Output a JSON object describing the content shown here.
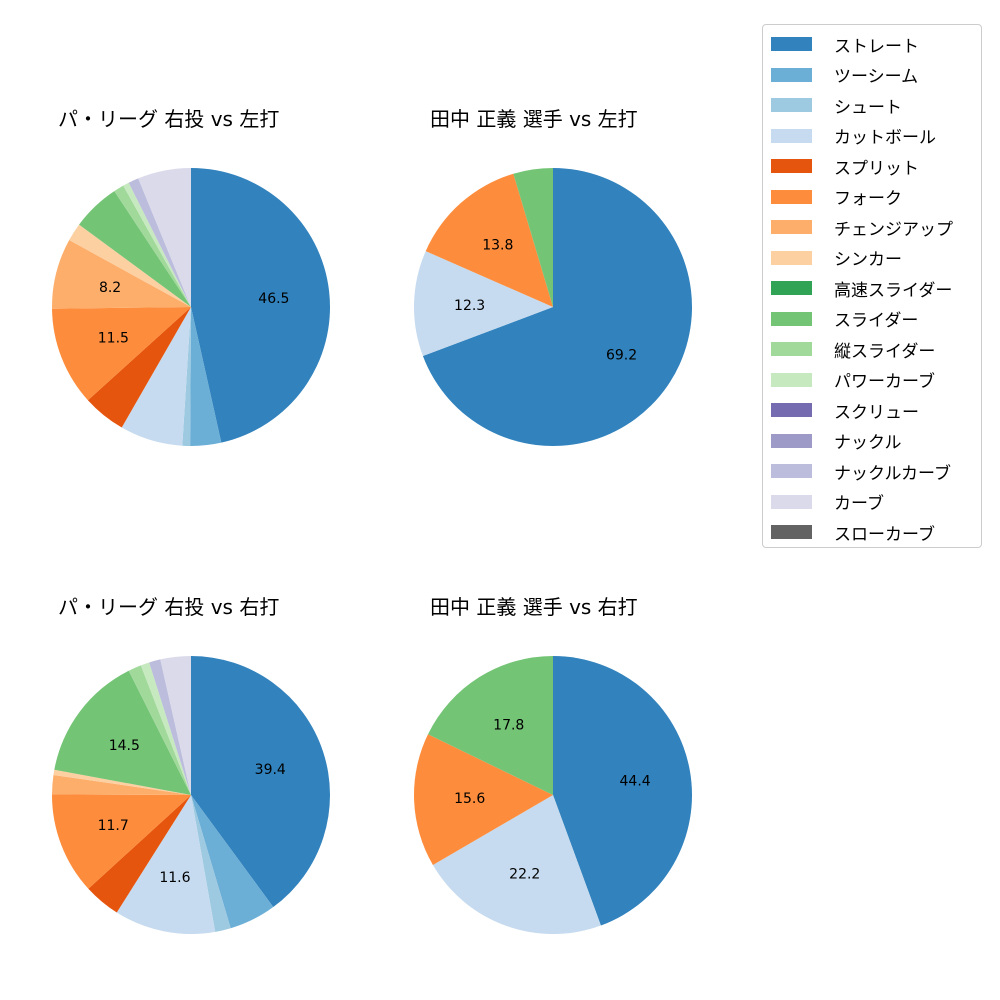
{
  "legend": {
    "items": [
      {
        "label": "ストレート",
        "color": "#3182bd"
      },
      {
        "label": "ツーシーム",
        "color": "#6baed6"
      },
      {
        "label": "シュート",
        "color": "#9ecae1"
      },
      {
        "label": "カットボール",
        "color": "#c6dbef"
      },
      {
        "label": "スプリット",
        "color": "#e6550d"
      },
      {
        "label": "フォーク",
        "color": "#fd8d3c"
      },
      {
        "label": "チェンジアップ",
        "color": "#fdae6b"
      },
      {
        "label": "シンカー",
        "color": "#fdd0a2"
      },
      {
        "label": "高速スライダー",
        "color": "#31a354"
      },
      {
        "label": "スライダー",
        "color": "#74c476"
      },
      {
        "label": "縦スライダー",
        "color": "#a1d99b"
      },
      {
        "label": "パワーカーブ",
        "color": "#c7e9c0"
      },
      {
        "label": "スクリュー",
        "color": "#756bb1"
      },
      {
        "label": "ナックル",
        "color": "#9e9ac8"
      },
      {
        "label": "ナックルカーブ",
        "color": "#bcbddc"
      },
      {
        "label": "カーブ",
        "color": "#dadaeb"
      },
      {
        "label": "スローカーブ",
        "color": "#636363"
      }
    ]
  },
  "chart_data": [
    {
      "type": "pie",
      "title": "パ・リーグ 右投 vs 左打",
      "start_angle": 90,
      "direction": "clockwise",
      "slices": [
        {
          "label": "ストレート",
          "value": 46.5,
          "shown_label": "46.5"
        },
        {
          "label": "ツーシーム",
          "value": 3.6
        },
        {
          "label": "シュート",
          "value": 0.9
        },
        {
          "label": "カットボール",
          "value": 7.3
        },
        {
          "label": "スプリット",
          "value": 5.0
        },
        {
          "label": "フォーク",
          "value": 11.5,
          "shown_label": "11.5"
        },
        {
          "label": "チェンジアップ",
          "value": 8.2,
          "shown_label": "8.2"
        },
        {
          "label": "シンカー",
          "value": 2.1
        },
        {
          "label": "スライダー",
          "value": 5.6
        },
        {
          "label": "縦スライダー",
          "value": 1.2
        },
        {
          "label": "パワーカーブ",
          "value": 0.7
        },
        {
          "label": "ナックルカーブ",
          "value": 1.2
        },
        {
          "label": "カーブ",
          "value": 6.2
        }
      ]
    },
    {
      "type": "pie",
      "title": "田中 正義 選手 vs 左打",
      "start_angle": 90,
      "direction": "clockwise",
      "slices": [
        {
          "label": "ストレート",
          "value": 69.2,
          "shown_label": "69.2"
        },
        {
          "label": "カットボール",
          "value": 12.3,
          "shown_label": "12.3"
        },
        {
          "label": "フォーク",
          "value": 13.8,
          "shown_label": "13.8"
        },
        {
          "label": "スライダー",
          "value": 4.6
        }
      ]
    },
    {
      "type": "pie",
      "title": "パ・リーグ 右投 vs 右打",
      "start_angle": 90,
      "direction": "clockwise",
      "slices": [
        {
          "label": "ストレート",
          "value": 39.4,
          "shown_label": "39.4"
        },
        {
          "label": "ツーシーム",
          "value": 5.4
        },
        {
          "label": "シュート",
          "value": 1.8
        },
        {
          "label": "カットボール",
          "value": 11.6,
          "shown_label": "11.6"
        },
        {
          "label": "スプリット",
          "value": 4.2
        },
        {
          "label": "フォーク",
          "value": 11.7,
          "shown_label": "11.7"
        },
        {
          "label": "チェンジアップ",
          "value": 2.2
        },
        {
          "label": "シンカー",
          "value": 0.6
        },
        {
          "label": "スライダー",
          "value": 14.5,
          "shown_label": "14.5"
        },
        {
          "label": "縦スライダー",
          "value": 1.5
        },
        {
          "label": "パワーカーブ",
          "value": 1.0
        },
        {
          "label": "ナックルカーブ",
          "value": 1.3
        },
        {
          "label": "カーブ",
          "value": 3.5
        }
      ]
    },
    {
      "type": "pie",
      "title": "田中 正義 選手 vs 右打",
      "start_angle": 90,
      "direction": "clockwise",
      "slices": [
        {
          "label": "ストレート",
          "value": 44.4,
          "shown_label": "44.4"
        },
        {
          "label": "カットボール",
          "value": 22.2,
          "shown_label": "22.2"
        },
        {
          "label": "フォーク",
          "value": 15.6,
          "shown_label": "15.6"
        },
        {
          "label": "スライダー",
          "value": 17.8,
          "shown_label": "17.8"
        }
      ]
    }
  ],
  "panels": [
    {
      "title": "パ・リーグ 右投 vs 左打"
    },
    {
      "title": "田中 正義 選手 vs 左打"
    },
    {
      "title": "パ・リーグ 右投 vs 右打"
    },
    {
      "title": "田中 正義 選手 vs 右打"
    }
  ]
}
